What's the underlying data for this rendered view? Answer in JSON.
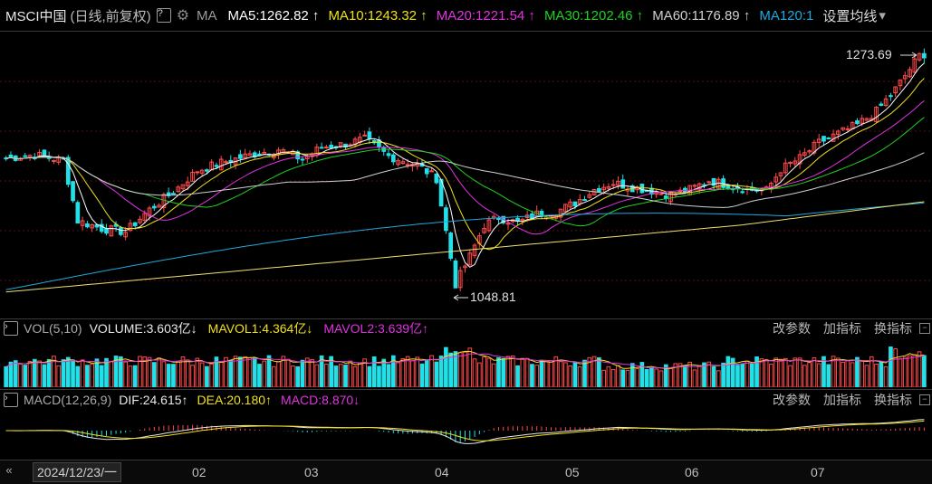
{
  "header": {
    "instrument": "MSCI中国",
    "period_note": "(日线,前复权)",
    "help_icon": "?",
    "gear": "gear-icon",
    "ma_label": "MA",
    "ma_items": [
      {
        "text": "MA5:1262.82",
        "arrow": "↑",
        "color": "#ffffff"
      },
      {
        "text": "MA10:1243.32",
        "arrow": "↑",
        "color": "#f0e01a"
      },
      {
        "text": "MA20:1221.54",
        "arrow": "↑",
        "color": "#e033e0"
      },
      {
        "text": "MA30:1202.46",
        "arrow": "↑",
        "color": "#20d020"
      },
      {
        "text": "MA60:1176.89",
        "arrow": "↑",
        "color": "#d0d0d0"
      },
      {
        "text": "MA120:1",
        "arrow": "",
        "color": "#20a8e0"
      }
    ],
    "settings_label": "设置均线",
    "dropdown": "▾"
  },
  "price_annotations": {
    "high_label": "1273.69",
    "low_label": "1048.81"
  },
  "volume_panel": {
    "title": "VOL(5,10)",
    "volume": "VOLUME:3.603亿",
    "volume_arrow": "↓",
    "mavol1": "MAVOL1:4.364亿",
    "mavol1_arrow": "↓",
    "mavol2": "MAVOL2:3.639亿",
    "mavol2_arrow": "↑",
    "buttons": [
      "改参数",
      "加指标",
      "换指标"
    ]
  },
  "macd_panel": {
    "title": "MACD(12,26,9)",
    "dif": "DIF:24.615",
    "dif_arrow": "↑",
    "dea": "DEA:20.180",
    "dea_arrow": "↑",
    "macd": "MACD:8.870",
    "macd_arrow": "↓",
    "buttons": [
      "改参数",
      "加指标",
      "换指标"
    ]
  },
  "date_axis": {
    "nav": "«",
    "current_date": "2024/12/23/一",
    "months": [
      "02",
      "03",
      "04",
      "05",
      "06",
      "07"
    ]
  },
  "colors": {
    "up": "#ff4b4b",
    "down": "#23e0e8",
    "ma5": "#ffffff",
    "ma10": "#f0e01a",
    "ma20": "#e033e0",
    "ma30": "#20d020",
    "ma60": "#d0d0d0",
    "ma120": "#20a8e0",
    "ma250": "#f0e070",
    "grid": "#5a1010"
  },
  "chart_data": {
    "type": "candlestick",
    "ylim": [
      1040,
      1285
    ],
    "high": 1273.69,
    "low": 1048.81,
    "ma_last": {
      "MA5": 1262.82,
      "MA10": 1243.32,
      "MA20": 1221.54,
      "MA30": 1202.46,
      "MA60": 1176.89
    },
    "close_path": [
      {
        "i": 0,
        "v": 1178
      },
      {
        "i": 6,
        "v": 1181
      },
      {
        "i": 12,
        "v": 1176
      },
      {
        "i": 15,
        "v": 1122
      },
      {
        "i": 20,
        "v": 1115
      },
      {
        "i": 25,
        "v": 1112
      },
      {
        "i": 30,
        "v": 1132
      },
      {
        "i": 35,
        "v": 1148
      },
      {
        "i": 40,
        "v": 1167
      },
      {
        "i": 45,
        "v": 1174
      },
      {
        "i": 52,
        "v": 1182
      },
      {
        "i": 57,
        "v": 1186
      },
      {
        "i": 62,
        "v": 1177
      },
      {
        "i": 66,
        "v": 1188
      },
      {
        "i": 70,
        "v": 1190
      },
      {
        "i": 75,
        "v": 1195
      },
      {
        "i": 80,
        "v": 1180
      },
      {
        "i": 86,
        "v": 1172
      },
      {
        "i": 90,
        "v": 1160
      },
      {
        "i": 94,
        "v": 1065
      },
      {
        "i": 97,
        "v": 1090
      },
      {
        "i": 100,
        "v": 1118
      },
      {
        "i": 103,
        "v": 1125
      },
      {
        "i": 107,
        "v": 1120
      },
      {
        "i": 111,
        "v": 1128
      },
      {
        "i": 115,
        "v": 1130
      },
      {
        "i": 119,
        "v": 1138
      },
      {
        "i": 123,
        "v": 1150
      },
      {
        "i": 127,
        "v": 1156
      },
      {
        "i": 131,
        "v": 1152
      },
      {
        "i": 135,
        "v": 1149
      },
      {
        "i": 139,
        "v": 1145
      },
      {
        "i": 143,
        "v": 1150
      },
      {
        "i": 147,
        "v": 1158
      },
      {
        "i": 151,
        "v": 1154
      },
      {
        "i": 155,
        "v": 1150
      },
      {
        "i": 159,
        "v": 1149
      },
      {
        "i": 162,
        "v": 1168
      },
      {
        "i": 166,
        "v": 1178
      },
      {
        "i": 170,
        "v": 1192
      },
      {
        "i": 174,
        "v": 1200
      },
      {
        "i": 178,
        "v": 1208
      },
      {
        "i": 182,
        "v": 1220
      },
      {
        "i": 186,
        "v": 1240
      },
      {
        "i": 189,
        "v": 1258
      },
      {
        "i": 191,
        "v": 1270
      },
      {
        "i": 192,
        "v": 1268
      }
    ],
    "volume_note": "relative volume bars, high volume in early April and July",
    "macd_note": "MACD histogram oscillating around zero, positive at end"
  }
}
